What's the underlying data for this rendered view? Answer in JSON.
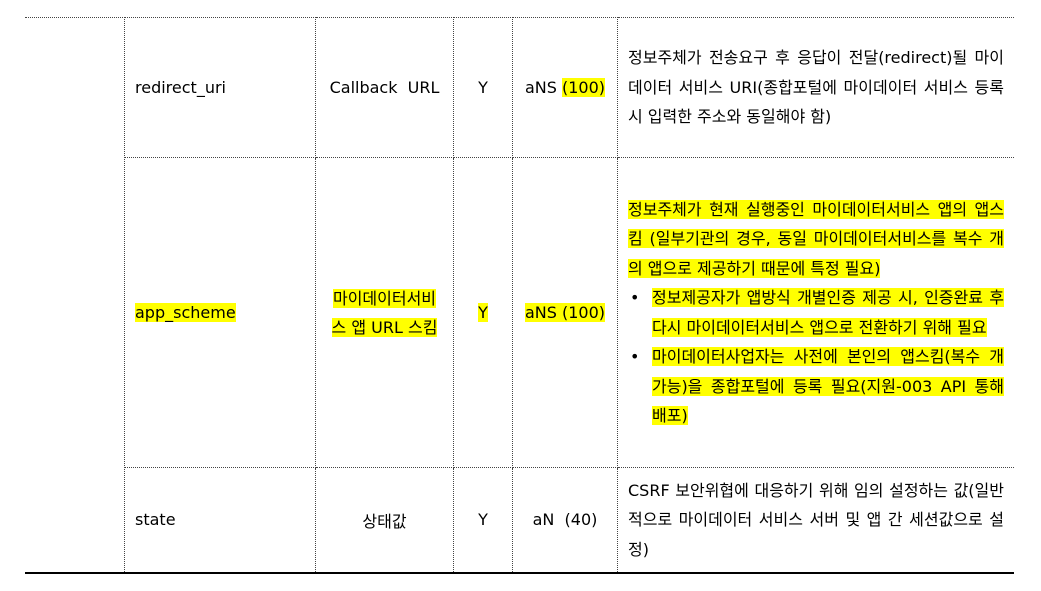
{
  "rows": [
    {
      "name": "redirect_uri",
      "desc_kr": "Callback  URL",
      "required": "Y",
      "type_prefix": "aNS ",
      "type_len": "(100)",
      "description": "정보주체가 전송요구 후 응답이 전달(redirect)될 마이데이터 서비스 URI(종합포털에 마이데이터 서비스 등록 시 입력한 주소와 동일해야 함)"
    },
    {
      "name": "app_scheme",
      "desc_kr": "마이데이터서비스 앱 URL 스킴",
      "required": "Y",
      "type": "aNS (100)",
      "description": "정보주체가 현재 실행중인 마이데이터서비스 앱의 앱스킴 (일부기관의 경우, 동일 마이데이터서비스를 복수 개의 앱으로 제공하기 때문에 특정 필요)",
      "bullets": [
        "정보제공자가 앱방식 개별인증 제공 시, 인증완료 후 다시 마이데이터서비스 앱으로 전환하기 위해 필요",
        "마이데이터사업자는 사전에 본인의 앱스킴(복수 개 가능)을 종합포털에 등록 필요(지원-003 API 통해 배포)"
      ],
      "bullet_symbol": "•"
    },
    {
      "name": "state",
      "desc_kr": "상태값",
      "required": "Y",
      "type": "aN  (40)",
      "description": "CSRF 보안위협에 대응하기 위해 임의 설정하는 값(일반적으로 마이데이터 서비스 서버 및 앱 간 세션값으로 설정)"
    }
  ],
  "colors": {
    "highlight": "#ffff00"
  }
}
